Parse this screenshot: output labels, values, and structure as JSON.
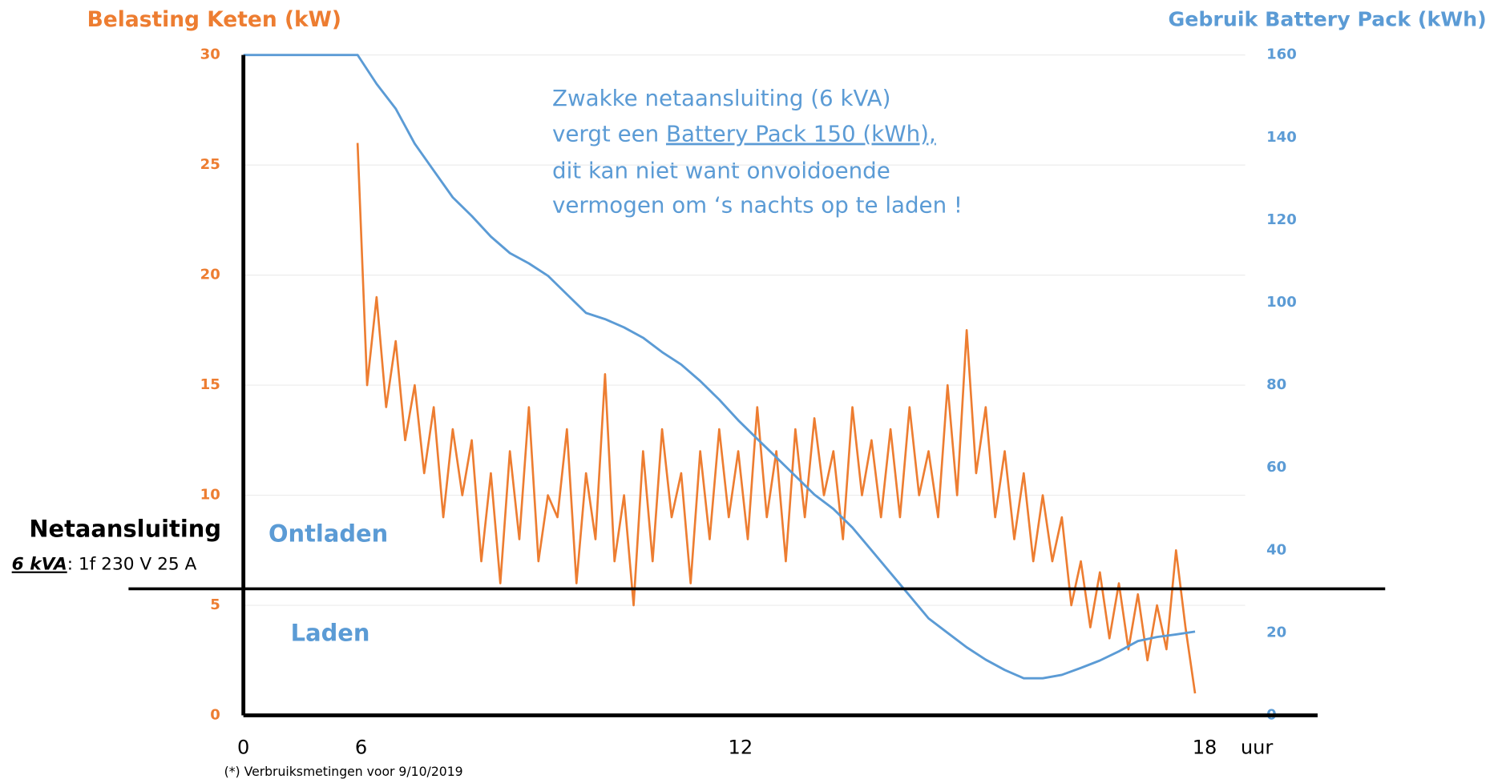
{
  "chart_data": {
    "type": "line",
    "y_label": "Belasting Keten (kW)",
    "y2_label": "Gebruik Battery Pack  (kWh)",
    "ylim": [
      0,
      30
    ],
    "yticks": [
      0,
      5,
      10,
      15,
      20,
      25,
      30
    ],
    "y2lim": [
      0,
      160
    ],
    "y2ticks": [
      0,
      20,
      40,
      60,
      80,
      100,
      120,
      140,
      160
    ],
    "grid": true,
    "reference_line": 5.75,
    "x_labels": [
      "0",
      "6",
      "12",
      "18",
      "uur"
    ],
    "series": [
      {
        "color": "#ed7d31",
        "values": [
          null,
          null,
          null,
          null,
          null,
          null,
          null,
          null,
          null,
          null,
          null,
          null,
          26,
          15,
          19,
          14,
          17,
          12.5,
          15,
          11,
          14,
          9,
          13,
          10,
          12.5,
          7,
          11,
          6,
          12,
          8,
          14,
          7,
          10,
          9,
          13,
          6,
          11,
          8,
          15.5,
          7,
          10,
          5,
          12,
          7,
          13,
          9,
          11,
          6,
          12,
          8,
          13,
          9,
          12,
          8,
          14,
          9,
          12,
          7,
          13,
          9,
          13.5,
          10,
          12,
          8,
          14,
          10,
          12.5,
          9,
          13,
          9,
          14,
          10,
          12,
          9,
          15,
          10,
          17.5,
          11,
          14,
          9,
          12,
          8,
          11,
          7,
          10,
          7,
          9,
          5,
          7,
          4,
          6.5,
          3.5,
          6,
          3,
          5.5,
          2.5,
          5,
          3,
          7.5,
          4,
          1
        ]
      },
      {
        "color": "#5b9bd5",
        "axis": "y2",
        "values": [
          160,
          160,
          160,
          160,
          160,
          160,
          160,
          153,
          147,
          138.5,
          132,
          125.5,
          121,
          116,
          112,
          109.5,
          106.5,
          102,
          97.5,
          96,
          94,
          91.5,
          88,
          85,
          81,
          76.5,
          71.5,
          67,
          62.5,
          58,
          53.5,
          50,
          45.5,
          40,
          34.5,
          29,
          23.5,
          20,
          16.5,
          13.5,
          11,
          9,
          9,
          9.8,
          11.5,
          13.3,
          15.5,
          18,
          19,
          19.6,
          20.3
        ]
      }
    ],
    "annotation": [
      "Zwakke netaansluiting (6 kVA)",
      "vergt een ",
      "Battery Pack 150  (kWh),",
      "dit kan niet want onvoldoende",
      "vermogen om ‘s nachts op te laden !"
    ],
    "region_labels": [
      "Ontladen",
      "Laden"
    ],
    "connection": {
      "title": "Netaansluiting",
      "rating": "6 kVA",
      "spec": ":  1f  230 V 25 A"
    },
    "footnote": "(*) Verbruiksmetingen voor 9/10/2019"
  }
}
